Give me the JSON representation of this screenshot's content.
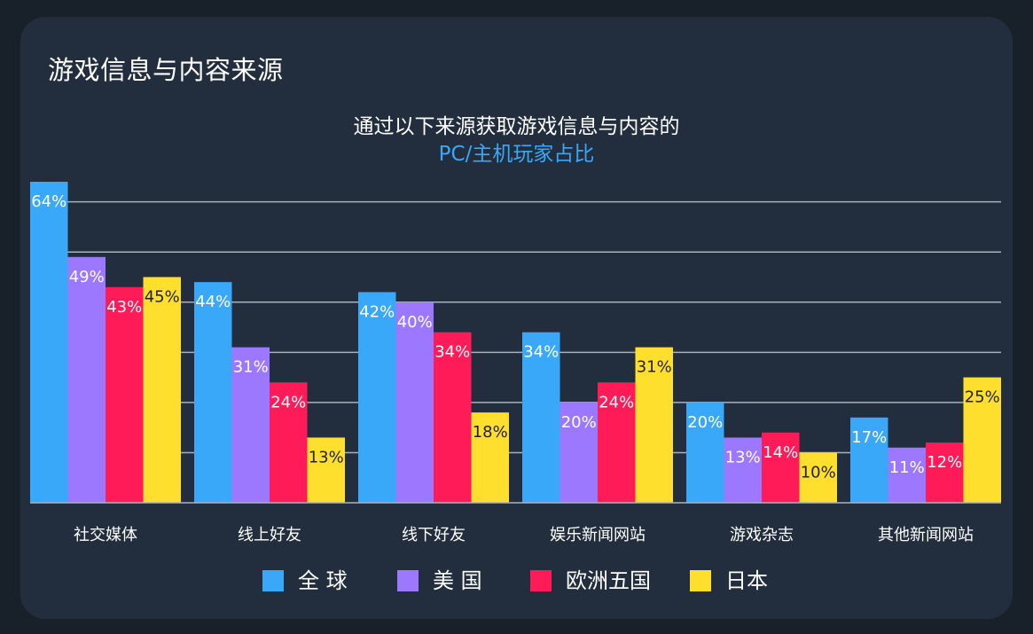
{
  "card": {
    "title": "游戏信息与内容来源"
  },
  "chart_data": {
    "type": "bar",
    "title": "通过以下来源获取游戏信息与内容的",
    "subtitle": "PC/主机玩家占比",
    "categories": [
      "社交媒体",
      "线上好友",
      "线下好友",
      "娱乐新闻网站",
      "游戏杂志",
      "其他新闻网站"
    ],
    "series": [
      {
        "name": "全 球",
        "color": "#3aa8f8",
        "label_color": "#ffffff",
        "values": [
          64,
          44,
          42,
          34,
          20,
          17
        ]
      },
      {
        "name": "美 国",
        "color": "#9b78ff",
        "label_color": "#ffffff",
        "values": [
          49,
          31,
          40,
          20,
          13,
          11
        ]
      },
      {
        "name": "欧洲五国",
        "color": "#ff1a58",
        "label_color": "#ffffff",
        "values": [
          43,
          24,
          34,
          24,
          14,
          12
        ]
      },
      {
        "name": "日本",
        "color": "#ffdf2e",
        "label_color": "#222222",
        "values": [
          45,
          13,
          18,
          31,
          10,
          25
        ]
      }
    ],
    "value_suffix": "%",
    "ylim": [
      0,
      64
    ],
    "grid": true,
    "legend_position": "bottom",
    "subtitle_color": "#3aa8f8"
  }
}
